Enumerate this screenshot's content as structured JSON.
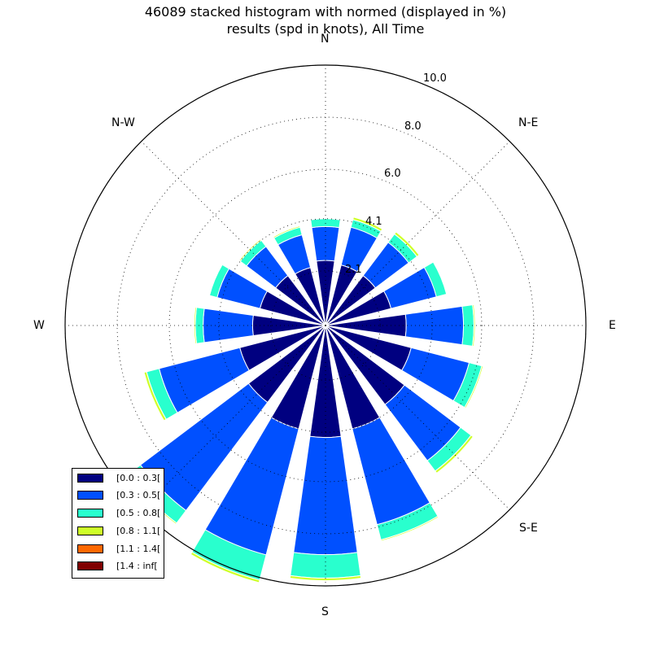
{
  "title_line1": "46089 stacked histogram with normed (displayed in %)",
  "title_line2": "results (spd in knots), All Time",
  "directions": [
    "N",
    "N-E",
    "E",
    "S-E",
    "S",
    "W",
    "N-W"
  ],
  "radial_tick_labels": [
    "2.1",
    "4.1",
    "6.0",
    "8.0",
    "10.0"
  ],
  "colors": [
    "#000080",
    "#0050ff",
    "#29ffce",
    "#ceff29",
    "#ff6800",
    "#800000"
  ],
  "legend": [
    {
      "label": "[0.0 : 0.3[",
      "color": "#000080"
    },
    {
      "label": "[0.3 : 0.5[",
      "color": "#0050ff"
    },
    {
      "label": "[0.5 : 0.8[",
      "color": "#29ffce"
    },
    {
      "label": "[0.8 : 1.1[",
      "color": "#ceff29"
    },
    {
      "label": "[1.1 : 1.4[",
      "color": "#ff6800"
    },
    {
      "label": "[1.4 : inf[",
      "color": "#800000"
    }
  ],
  "chart_data": {
    "type": "windrose",
    "title": "46089 stacked histogram with normed (displayed in %) results (spd in knots), All Time",
    "direction_unit": "degrees",
    "sector_directions": [
      0,
      22.5,
      45,
      67.5,
      90,
      112.5,
      135,
      157.5,
      180,
      202.5,
      225,
      247.5,
      270,
      292.5,
      315,
      337.5
    ],
    "rlim": [
      0,
      10.0
    ],
    "radial_ticks": [
      2.1,
      4.1,
      6.0,
      8.0,
      10.0
    ],
    "series": [
      {
        "name": "[0.0 : 0.3[",
        "values": [
          2.5,
          2.4,
          2.4,
          2.6,
          3.1,
          3.4,
          3.8,
          4.1,
          4.3,
          4.1,
          3.7,
          3.4,
          2.8,
          2.6,
          2.4,
          2.3
        ]
      },
      {
        "name": "[0.3 : 0.5[",
        "values": [
          1.3,
          1.5,
          1.6,
          1.8,
          2.2,
          2.3,
          2.7,
          3.8,
          4.5,
          5.0,
          5.2,
          3.2,
          1.9,
          1.7,
          1.4,
          1.3
        ]
      },
      {
        "name": "[0.5 : 0.8[",
        "values": [
          0.3,
          0.3,
          0.4,
          0.4,
          0.4,
          0.5,
          0.5,
          0.6,
          0.9,
          1.0,
          0.6,
          0.5,
          0.3,
          0.3,
          0.3,
          0.3
        ]
      },
      {
        "name": "[0.8 : 1.1[",
        "values": [
          0.0,
          0.1,
          0.1,
          0.0,
          0.05,
          0.05,
          0.1,
          0.05,
          0.1,
          0.1,
          0.05,
          0.1,
          0.05,
          0.0,
          0.05,
          0.05
        ]
      },
      {
        "name": "[1.1 : 1.4[",
        "values": [
          0,
          0,
          0,
          0,
          0,
          0,
          0,
          0,
          0,
          0,
          0,
          0,
          0,
          0,
          0,
          0
        ]
      },
      {
        "name": "[1.4 : inf[",
        "values": [
          0,
          0,
          0,
          0,
          0,
          0,
          0,
          0,
          0,
          0,
          0,
          0,
          0,
          0,
          0,
          0
        ]
      }
    ],
    "grid": true,
    "legend_position": "lower-left"
  }
}
